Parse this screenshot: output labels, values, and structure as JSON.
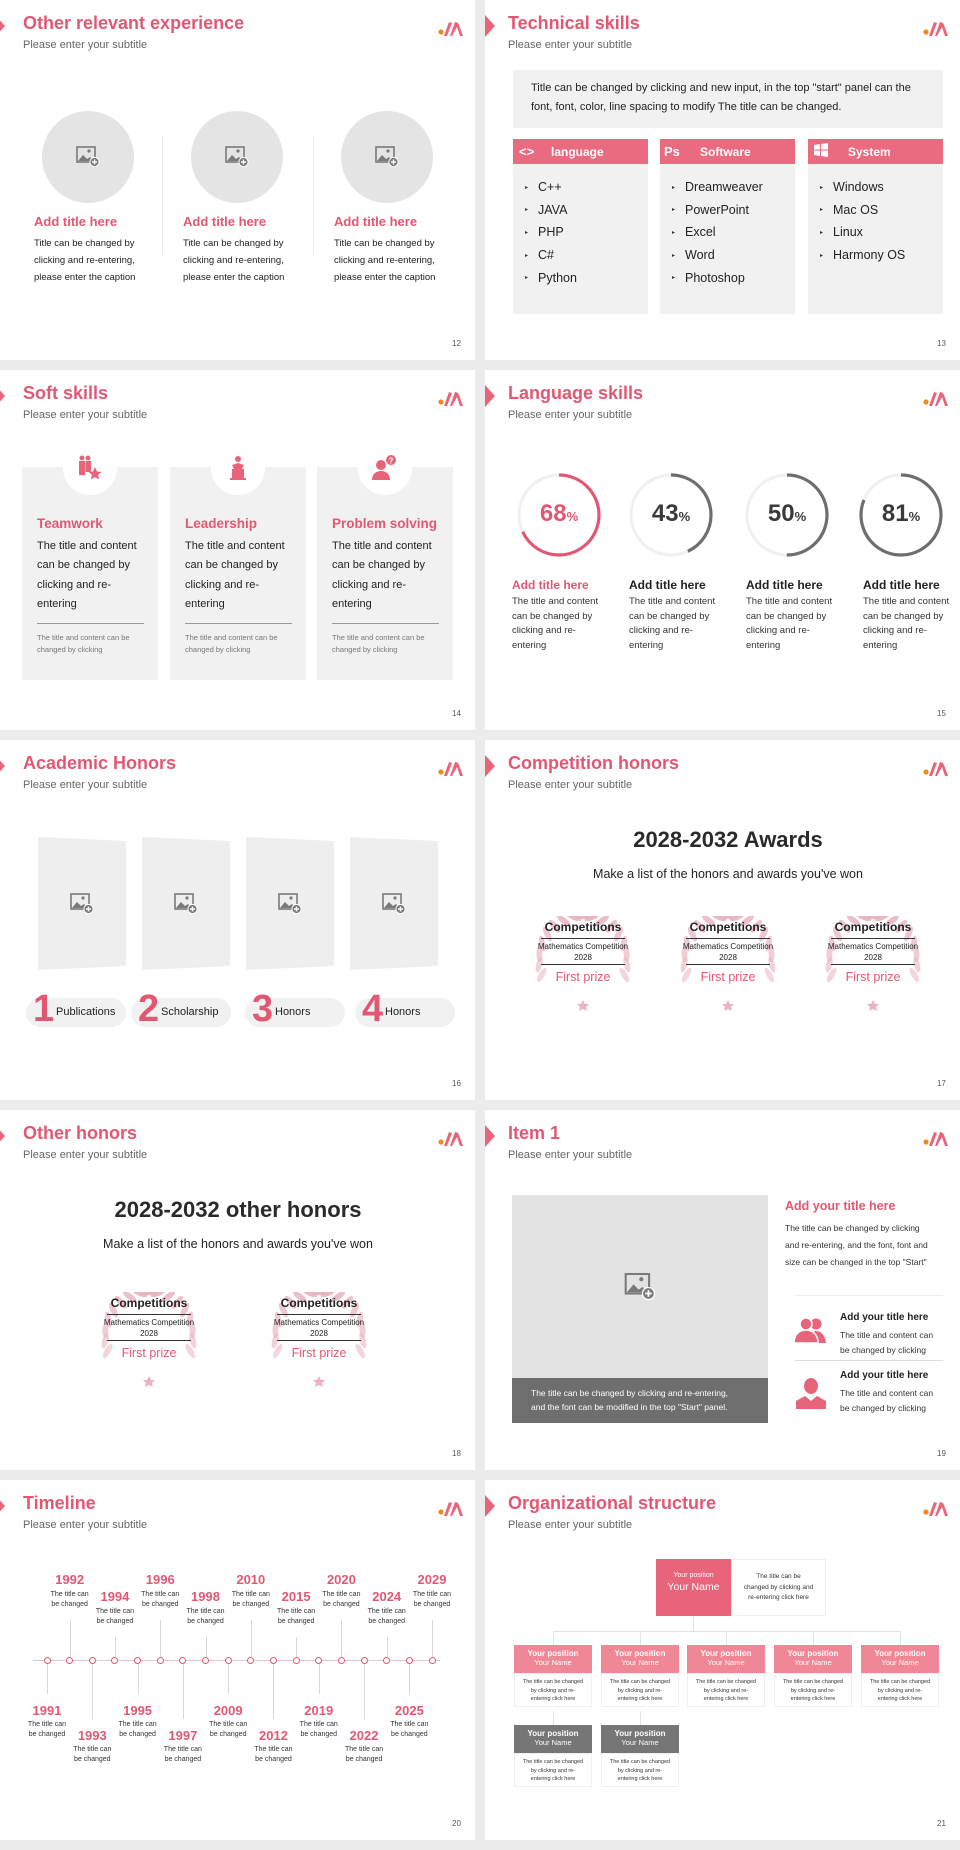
{
  "colors": {
    "accent": "#e25873",
    "header_pink": "#ea6a7f",
    "gray_ring": "#6e6e6e",
    "panel": "#f1f1f1"
  },
  "subtitle": "Please enter your subtitle",
  "s12": {
    "title": "Other relevant experience",
    "page": "12",
    "items": [
      {
        "title": "Add title here",
        "text": "Title can be changed by\nclicking and re-entering,\nplease enter the caption"
      },
      {
        "title": "Add title here",
        "text": "Title can be changed by\nclicking and re-entering,\nplease enter the caption"
      },
      {
        "title": "Add title here",
        "text": "Title can be changed by\nclicking and re-entering,\nplease enter the caption"
      }
    ]
  },
  "s13": {
    "title": "Technical skills",
    "page": "13",
    "intro": "Title can be changed by clicking and new input, in the top \"start\" panel can the font, font, color, line spacing to modify The title can be changed.",
    "columns": [
      {
        "icon": "code-icon",
        "label": "language",
        "items": [
          "C++",
          "JAVA",
          "PHP",
          "C#",
          "Python"
        ]
      },
      {
        "icon": "photoshop-icon",
        "label": "Software",
        "items": [
          "Dreamweaver",
          "PowerPoint",
          "Excel",
          "Word",
          "Photoshop"
        ]
      },
      {
        "icon": "windows-icon",
        "label": "System",
        "items": [
          "Windows",
          "Mac OS",
          "Linux",
          "Harmony OS"
        ]
      }
    ]
  },
  "s14": {
    "title": "Soft skills",
    "page": "14",
    "cards": [
      {
        "icon": "teamwork-icon",
        "title": "Teamwork",
        "text": "The title and content\ncan be changed by\nclicking and re-\nentering",
        "note": "The title and content can be\nchanged by clicking"
      },
      {
        "icon": "podium-speaker-icon",
        "title": "Leadership",
        "text": "The title and content\ncan be changed by\nclicking and re-\nentering",
        "note": "The title and content can be\nchanged by clicking"
      },
      {
        "icon": "person-question-icon",
        "title": "Problem solving",
        "text": "The title and content\ncan be changed by\nclicking and re-\nentering",
        "note": "The title and content can be\nchanged by clicking"
      }
    ]
  },
  "s15": {
    "title": "Language skills",
    "page": "15",
    "skills": [
      {
        "percent": 68,
        "label": "68",
        "unit": "%",
        "title": "Add title here",
        "text": "The title and content\ncan be changed by\nclicking and re-\nentering",
        "highlight": true
      },
      {
        "percent": 43,
        "label": "43",
        "unit": "%",
        "title": "Add title here",
        "text": "The title and content\ncan be changed by\nclicking and re-\nentering",
        "highlight": false
      },
      {
        "percent": 50,
        "label": "50",
        "unit": "%",
        "title": "Add title here",
        "text": "The title and content\ncan be changed by\nclicking and re-\nentering",
        "highlight": false
      },
      {
        "percent": 81,
        "label": "81",
        "unit": "%",
        "title": "Add title here",
        "text": "The title and content\ncan be changed by\nclicking and re-\nentering",
        "highlight": false
      }
    ]
  },
  "s16": {
    "title": "Academic Honors",
    "page": "16",
    "items": [
      {
        "num": "1",
        "label": "Publications"
      },
      {
        "num": "2",
        "label": "Scholarship"
      },
      {
        "num": "3",
        "label": "Honors"
      },
      {
        "num": "4",
        "label": "Honors"
      }
    ]
  },
  "s17": {
    "title": "Competition honors",
    "page": "17",
    "heading": "2028-2032 Awards",
    "lead": "Make a list of the honors and awards you've won",
    "awards": [
      {
        "category": "Competitions",
        "name": "Mathematics Competition",
        "year": "2028",
        "prize": "First prize"
      },
      {
        "category": "Competitions",
        "name": "Mathematics Competition",
        "year": "2028",
        "prize": "First prize"
      },
      {
        "category": "Competitions",
        "name": "Mathematics Competition",
        "year": "2028",
        "prize": "First prize"
      }
    ]
  },
  "s18": {
    "title": "Other honors",
    "page": "18",
    "heading": "2028-2032 other honors",
    "lead": "Make a list of the honors and awards you've won",
    "awards": [
      {
        "category": "Competitions",
        "name": "Mathematics Competition",
        "year": "2028",
        "prize": "First prize"
      },
      {
        "category": "Competitions",
        "name": "Mathematics Competition",
        "year": "2028",
        "prize": "First prize"
      }
    ]
  },
  "s19": {
    "title": "Item 1",
    "page": "19",
    "caption": "The title can be changed by clicking and re-entering,\nand the font can be modified in the top \"Start\" panel.",
    "main_title": "Add your title here",
    "main_text": "The title can be changed by clicking\nand re-entering, and the font, font and\nsize can be changed in the top \"Start\"",
    "items": [
      {
        "icon": "group-icon",
        "title": "Add your title here",
        "text": "The title and content can\nbe changed by clicking"
      },
      {
        "icon": "user-icon",
        "title": "Add your title here",
        "text": "The title and content can\nbe changed by clicking"
      }
    ]
  },
  "s20": {
    "title": "Timeline",
    "page": "20",
    "events": [
      {
        "year": "1991",
        "text": "The title can\nbe changed"
      },
      {
        "year": "1992",
        "text": "The title can\nbe changed"
      },
      {
        "year": "1993",
        "text": "The title can\nbe changed"
      },
      {
        "year": "1994",
        "text": "The title can\nbe changed"
      },
      {
        "year": "1995",
        "text": "The title can\nbe changed"
      },
      {
        "year": "1996",
        "text": "The title can\nbe changed"
      },
      {
        "year": "1997",
        "text": "The title can\nbe changed"
      },
      {
        "year": "1998",
        "text": "The title can\nbe changed"
      },
      {
        "year": "2009",
        "text": "The title can\nbe changed"
      },
      {
        "year": "2010",
        "text": "The title can\nbe changed"
      },
      {
        "year": "2012",
        "text": "The title can\nbe changed"
      },
      {
        "year": "2015",
        "text": "The title can\nbe changed"
      },
      {
        "year": "2019",
        "text": "The title can\nbe changed"
      },
      {
        "year": "2020",
        "text": "The title can\nbe changed"
      },
      {
        "year": "2022",
        "text": "The title can\nbe changed"
      },
      {
        "year": "2024",
        "text": "The title can\nbe changed"
      },
      {
        "year": "2025",
        "text": "The title can\nbe changed"
      },
      {
        "year": "2029",
        "text": "The title can\nbe changed"
      }
    ]
  },
  "s21": {
    "title": "Organizational structure",
    "page": "21",
    "top": {
      "position": "Your position",
      "name": "Your Name",
      "text": "The title can be\nchanged by clicking and\nre-entering click here"
    },
    "row1": [
      {
        "position": "Your position",
        "name": "Your Name",
        "text": "The title can be changed\nby clicking and re-\nentering click here"
      },
      {
        "position": "Your position",
        "name": "Your Name",
        "text": "The title can be changed\nby clicking and re-\nentering click here"
      },
      {
        "position": "Your position",
        "name": "Your Name",
        "text": "The title can be changed\nby clicking and re-\nentering click here"
      },
      {
        "position": "Your position",
        "name": "Your Name",
        "text": "The title can be changed\nby clicking and re-\nentering click here"
      },
      {
        "position": "Your position",
        "name": "Your Name",
        "text": "The title can be changed\nby clicking and re-\nentering click here"
      }
    ],
    "row2": [
      {
        "position": "Your position",
        "name": "Your Name",
        "text": "The title can be changed\nby clicking and re-\nentering click here"
      },
      {
        "position": "Your position",
        "name": "Your Name",
        "text": "The title can be changed\nby clicking and re-\nentering click here"
      }
    ]
  }
}
